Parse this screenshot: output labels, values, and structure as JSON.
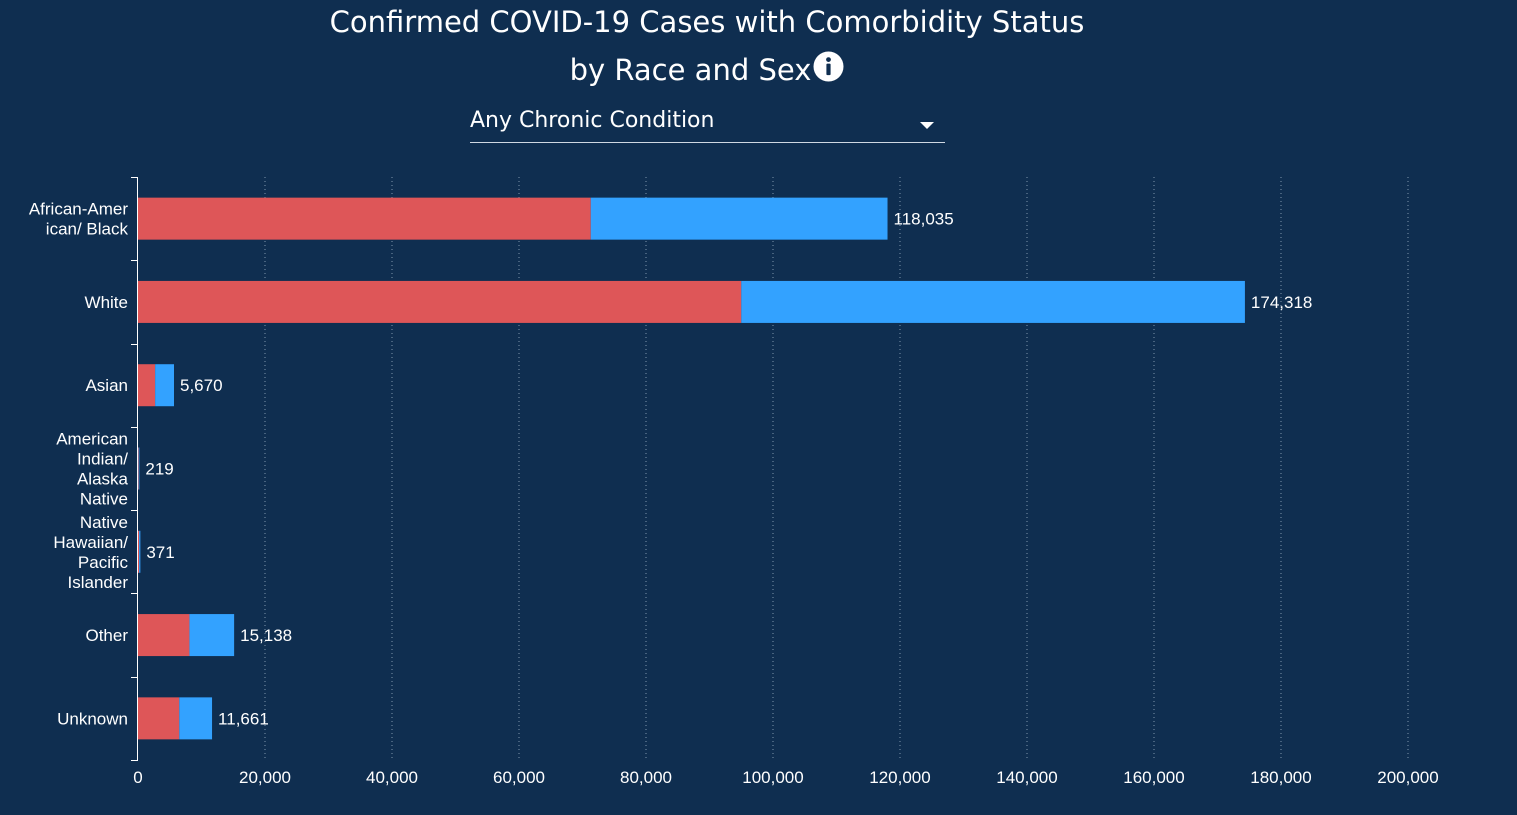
{
  "header": {
    "title_line1": "Confirmed COVID-19 Cases with Comorbidity Status",
    "title_line2": "by Race and Sex",
    "info_icon": "info-circle-icon"
  },
  "filter": {
    "selected": "Any Chronic Condition",
    "caret_icon": "caret-down-icon"
  },
  "colors": {
    "background": "#0f2e50",
    "series_1": "#de5658",
    "series_2": "#33a2ff",
    "text": "#ffffff",
    "grid": "#7f96ad"
  },
  "chart_data": {
    "type": "bar",
    "orientation": "horizontal",
    "stacked": true,
    "title": "Confirmed COVID-19 Cases with Comorbidity Status by Race and Sex",
    "categories": [
      "African-American/ Black",
      "White",
      "Asian",
      "American Indian/ Alaska Native",
      "Native Hawaiian/ Pacific Islander",
      "Other",
      "Unknown"
    ],
    "category_label_lines": [
      [
        "African-Amer",
        "ican/ Black"
      ],
      [
        "White"
      ],
      [
        "Asian"
      ],
      [
        "American",
        "Indian/",
        "Alaska",
        "Native"
      ],
      [
        "Native",
        "Hawaiian/",
        "Pacific",
        "Islander"
      ],
      [
        "Other"
      ],
      [
        "Unknown"
      ]
    ],
    "series": [
      {
        "color": "#de5658",
        "values": [
          71300,
          95000,
          2700,
          100,
          180,
          8100,
          6500
        ]
      },
      {
        "color": "#33a2ff",
        "values": [
          46735,
          79318,
          2970,
          119,
          191,
          7038,
          5161
        ]
      }
    ],
    "totals": [
      118035,
      174318,
      5670,
      219,
      371,
      15138,
      11661
    ],
    "total_labels": [
      "118,035",
      "174,318",
      "5,670",
      "219",
      "371",
      "15,138",
      "11,661"
    ],
    "xlim": [
      0,
      200000
    ],
    "xticks": [
      0,
      20000,
      40000,
      60000,
      80000,
      100000,
      120000,
      140000,
      160000,
      180000,
      200000
    ],
    "xtick_labels": [
      "0",
      "20,000",
      "40,000",
      "60,000",
      "80,000",
      "100,000",
      "120,000",
      "140,000",
      "160,000",
      "180,000",
      "200,000"
    ],
    "grid": true,
    "legend": "none"
  }
}
